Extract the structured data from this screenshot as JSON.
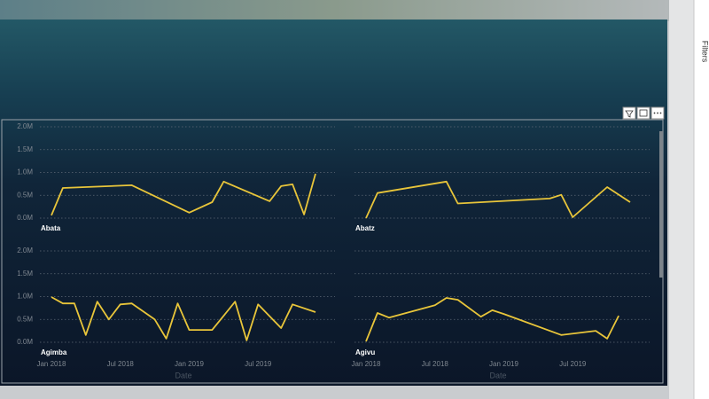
{
  "filters_pane": {
    "title": "Filters"
  },
  "chart_data": [
    {
      "type": "line",
      "title": "Abata",
      "color": "#e8c53a",
      "grid": true,
      "x": [
        "2018-01",
        "2018-02",
        "2018-08",
        "2019-01",
        "2019-03",
        "2019-04",
        "2019-08",
        "2019-09",
        "2019-10",
        "2019-11",
        "2019-12"
      ],
      "values": [
        60000,
        660000,
        720000,
        120000,
        350000,
        800000,
        370000,
        700000,
        740000,
        80000,
        970000
      ],
      "xlim": [
        "2017-12",
        "2020-01"
      ],
      "ylim": [
        0,
        2000000
      ],
      "yticks": [
        {
          "value": 0,
          "label": "0.0M"
        },
        {
          "value": 500000,
          "label": "0.5M"
        },
        {
          "value": 1000000,
          "label": "1.0M"
        },
        {
          "value": 1500000,
          "label": "1.5M"
        },
        {
          "value": 2000000,
          "label": "2.0M"
        }
      ]
    },
    {
      "type": "line",
      "title": "Abatz",
      "color": "#e8c53a",
      "grid": true,
      "x": [
        "2018-01",
        "2018-02",
        "2018-08",
        "2018-09",
        "2019-05",
        "2019-06",
        "2019-07",
        "2019-10",
        "2019-12"
      ],
      "values": [
        0,
        550000,
        800000,
        320000,
        430000,
        510000,
        20000,
        680000,
        350000
      ],
      "xlim": [
        "2017-12",
        "2020-01"
      ],
      "ylim": [
        0,
        2000000
      ],
      "yticks": [
        {
          "value": 0,
          "label": "0.0M"
        },
        {
          "value": 500000,
          "label": "0.5M"
        },
        {
          "value": 1000000,
          "label": "1.0M"
        },
        {
          "value": 1500000,
          "label": "1.5M"
        },
        {
          "value": 2000000,
          "label": "2.0M"
        }
      ]
    },
    {
      "type": "line",
      "title": "Agimba",
      "color": "#e8c53a",
      "grid": true,
      "xlabel": "Date",
      "x": [
        "2018-01",
        "2018-02",
        "2018-03",
        "2018-04",
        "2018-05",
        "2018-06",
        "2018-07",
        "2018-08",
        "2018-10",
        "2018-11",
        "2018-12",
        "2019-01",
        "2019-03",
        "2019-05",
        "2019-06",
        "2019-07",
        "2019-09",
        "2019-10",
        "2019-12"
      ],
      "values": [
        990000,
        850000,
        850000,
        160000,
        890000,
        500000,
        830000,
        850000,
        500000,
        80000,
        850000,
        270000,
        270000,
        890000,
        40000,
        830000,
        310000,
        830000,
        660000
      ],
      "xlim": [
        "2017-12",
        "2020-01"
      ],
      "ylim": [
        0,
        2000000
      ],
      "xticks": [
        {
          "value": "2018-01",
          "label": "Jan 2018"
        },
        {
          "value": "2018-07",
          "label": "Jul 2018"
        },
        {
          "value": "2019-01",
          "label": "Jan 2019"
        },
        {
          "value": "2019-07",
          "label": "Jul 2019"
        }
      ],
      "yticks": [
        {
          "value": 0,
          "label": "0.0M"
        },
        {
          "value": 500000,
          "label": "0.5M"
        },
        {
          "value": 1000000,
          "label": "1.0M"
        },
        {
          "value": 1500000,
          "label": "1.5M"
        },
        {
          "value": 2000000,
          "label": "2.0M"
        }
      ]
    },
    {
      "type": "line",
      "title": "Agivu",
      "color": "#e8c53a",
      "grid": true,
      "xlabel": "Date",
      "x": [
        "2018-01",
        "2018-02",
        "2018-03",
        "2018-07",
        "2018-08",
        "2018-09",
        "2018-11",
        "2018-12",
        "2019-01",
        "2019-06",
        "2019-09",
        "2019-10",
        "2019-11"
      ],
      "values": [
        20000,
        640000,
        540000,
        810000,
        970000,
        930000,
        560000,
        700000,
        620000,
        160000,
        250000,
        80000,
        580000
      ],
      "xlim": [
        "2017-12",
        "2020-01"
      ],
      "ylim": [
        0,
        2000000
      ],
      "xticks": [
        {
          "value": "2018-01",
          "label": "Jan 2018"
        },
        {
          "value": "2018-07",
          "label": "Jul 2018"
        },
        {
          "value": "2019-01",
          "label": "Jan 2019"
        },
        {
          "value": "2019-07",
          "label": "Jul 2019"
        }
      ]
    }
  ]
}
